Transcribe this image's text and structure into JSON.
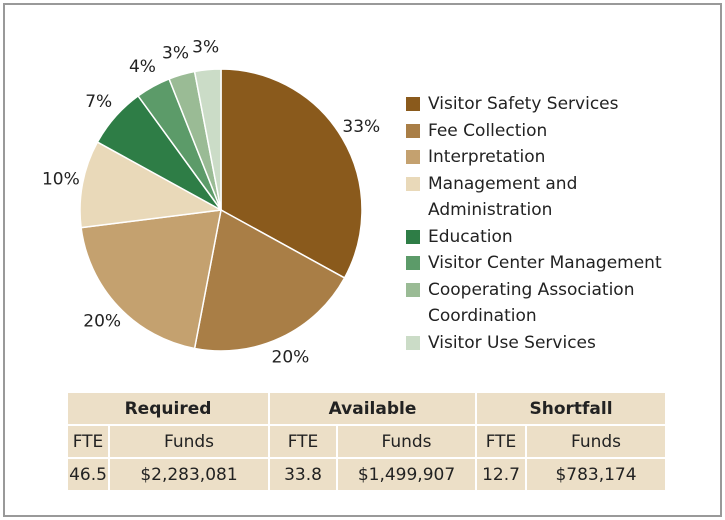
{
  "chart_data": {
    "type": "pie",
    "categories": [
      "Visitor Safety Services",
      "Fee Collection",
      "Interpretation",
      "Management and Administration",
      "Education",
      "Visitor Center Management",
      "Cooperating Association Coordination",
      "Visitor Use Services"
    ],
    "values": [
      33,
      20,
      20,
      10,
      7,
      4,
      3,
      3
    ],
    "value_labels": [
      "33%",
      "20%",
      "20%",
      "10%",
      "7%",
      "4%",
      "3%",
      "3%"
    ],
    "colors": [
      "#8a5a1c",
      "#a97e46",
      "#c4a16f",
      "#e9d9b9",
      "#2e7d46",
      "#5c9b69",
      "#9abb95",
      "#cbdcc7"
    ],
    "legend": "right"
  },
  "table": {
    "groups": [
      "Required",
      "Available",
      "Shortfall"
    ],
    "columns": [
      "FTE",
      "Funds",
      "FTE",
      "Funds",
      "FTE",
      "Funds"
    ],
    "rows": [
      [
        "46.5",
        "$2,283,081",
        "33.8",
        "$1,499,907",
        "12.7",
        "$783,174"
      ]
    ]
  }
}
